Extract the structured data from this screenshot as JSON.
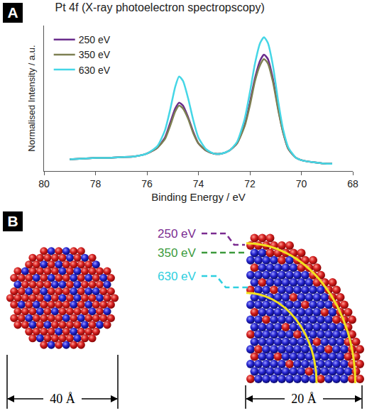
{
  "panel_labels": [
    "A",
    "B"
  ],
  "chart_data": {
    "type": "line",
    "title": "Pt 4f (X-ray photoelectron spectropscopy)",
    "x_label": "Binding Energy / eV",
    "y_label": "Normalised Intensity / a.u.",
    "x": [
      79,
      78.5,
      78,
      77.5,
      77,
      76.5,
      76,
      75.6,
      75.3,
      75.1,
      74.9,
      74.75,
      74.6,
      74.4,
      74.2,
      74.0,
      73.7,
      73.4,
      73.1,
      72.8,
      72.5,
      72.2,
      72.0,
      71.8,
      71.6,
      71.45,
      71.3,
      71.1,
      70.9,
      70.7,
      70.5,
      70.2,
      69.9,
      69.5,
      69.0,
      68.8
    ],
    "series": [
      {
        "name": "250 eV",
        "color": "#6a2c8c",
        "values": [
          0.08,
          0.085,
          0.09,
          0.09,
          0.095,
          0.1,
          0.12,
          0.16,
          0.23,
          0.33,
          0.43,
          0.47,
          0.45,
          0.37,
          0.27,
          0.19,
          0.14,
          0.12,
          0.12,
          0.14,
          0.19,
          0.32,
          0.47,
          0.64,
          0.76,
          0.8,
          0.77,
          0.63,
          0.43,
          0.26,
          0.15,
          0.09,
          0.07,
          0.06,
          0.05,
          0.05
        ]
      },
      {
        "name": "350 eV",
        "color": "#7d7f52",
        "values": [
          0.08,
          0.085,
          0.09,
          0.09,
          0.095,
          0.1,
          0.12,
          0.16,
          0.22,
          0.31,
          0.41,
          0.45,
          0.43,
          0.36,
          0.26,
          0.19,
          0.14,
          0.12,
          0.12,
          0.14,
          0.19,
          0.31,
          0.45,
          0.62,
          0.73,
          0.77,
          0.74,
          0.61,
          0.42,
          0.26,
          0.15,
          0.09,
          0.07,
          0.06,
          0.05,
          0.05
        ]
      },
      {
        "name": "630 eV",
        "color": "#45d6e6",
        "values": [
          0.08,
          0.085,
          0.09,
          0.09,
          0.095,
          0.1,
          0.12,
          0.17,
          0.28,
          0.42,
          0.58,
          0.65,
          0.62,
          0.5,
          0.35,
          0.23,
          0.15,
          0.12,
          0.12,
          0.14,
          0.2,
          0.36,
          0.54,
          0.74,
          0.88,
          0.92,
          0.88,
          0.72,
          0.48,
          0.28,
          0.16,
          0.09,
          0.07,
          0.06,
          0.05,
          0.05
        ]
      }
    ],
    "xlim": [
      80,
      68
    ],
    "xticks": [
      80,
      78,
      76,
      74,
      72,
      70,
      68
    ],
    "ylim": [
      0,
      1
    ],
    "yticks": [],
    "tick_labels": "x",
    "grid": false,
    "legend": "top-left"
  },
  "diagram": {
    "depth_labels": [
      {
        "text": "250 eV",
        "color": "#7b2c91"
      },
      {
        "text": "350 eV",
        "color": "#3c9a3c"
      },
      {
        "text": "630 eV",
        "color": "#2fcfe0"
      }
    ],
    "scale_bars": [
      "40 Å",
      "20 Å"
    ]
  }
}
